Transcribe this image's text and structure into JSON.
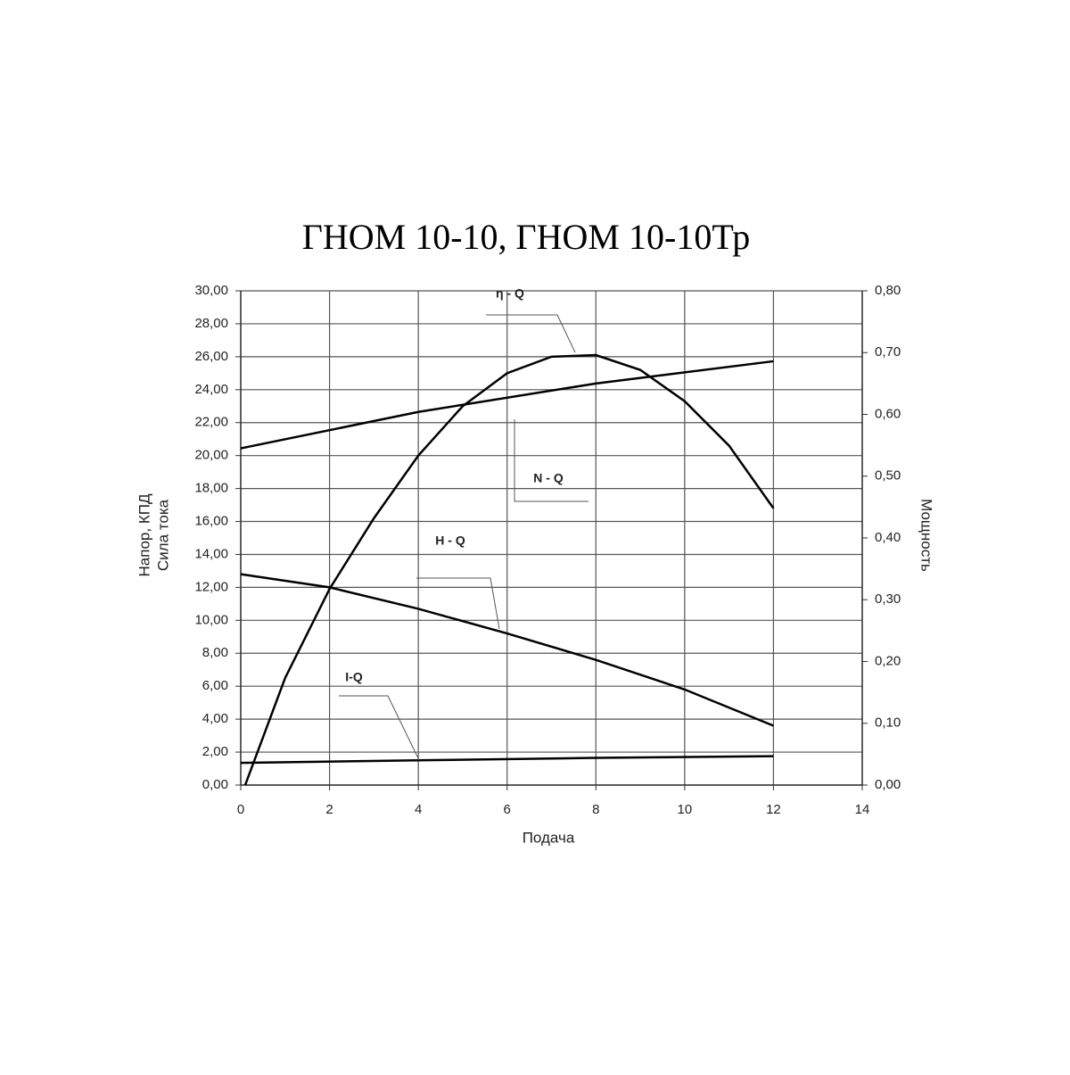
{
  "chart_data": {
    "type": "line",
    "title": "ГНОМ 10-10, ГНОМ 10-10Тр",
    "x_label": "Подача",
    "y_label": [
      "Напор, КПД",
      "Сила тока"
    ],
    "y2_label": "Мощность",
    "xlim": [
      0,
      14
    ],
    "xticks": [
      0,
      2,
      4,
      6,
      8,
      10,
      12,
      14
    ],
    "ylim": [
      0,
      30
    ],
    "yticks": [
      {
        "value": 0,
        "label": "0,00"
      },
      {
        "value": 2,
        "label": "2,00"
      },
      {
        "value": 4,
        "label": "4,00"
      },
      {
        "value": 6,
        "label": "6,00"
      },
      {
        "value": 8,
        "label": "8,00"
      },
      {
        "value": 10,
        "label": "10,00"
      },
      {
        "value": 12,
        "label": "12,00"
      },
      {
        "value": 14,
        "label": "14,00"
      },
      {
        "value": 16,
        "label": "16,00"
      },
      {
        "value": 18,
        "label": "18,00"
      },
      {
        "value": 20,
        "label": "20,00"
      },
      {
        "value": 22,
        "label": "22,00"
      },
      {
        "value": 24,
        "label": "24,00"
      },
      {
        "value": 26,
        "label": "26,00"
      },
      {
        "value": 28,
        "label": "28,00"
      },
      {
        "value": 30,
        "label": "30,00"
      }
    ],
    "y2lim": [
      0,
      0.8
    ],
    "y2ticks": [
      {
        "value": 0,
        "label": "0,00"
      },
      {
        "value": 0.1,
        "label": "0,10"
      },
      {
        "value": 0.2,
        "label": "0,20"
      },
      {
        "value": 0.3,
        "label": "0,30"
      },
      {
        "value": 0.4,
        "label": "0,40"
      },
      {
        "value": 0.5,
        "label": "0,50"
      },
      {
        "value": 0.6,
        "label": "0,60"
      },
      {
        "value": 0.7,
        "label": "0,70"
      },
      {
        "value": 0.8,
        "label": "0,80"
      }
    ],
    "grid": true,
    "series": [
      {
        "name": "η - Q",
        "color": "#000000",
        "x": [
          0.1,
          1,
          2,
          3,
          4,
          5,
          6,
          7,
          8,
          9,
          10,
          11,
          12
        ],
        "values": [
          0,
          6.5,
          11.9,
          16.2,
          20.0,
          23.0,
          25.0,
          26.0,
          26.1,
          25.2,
          23.3,
          20.6,
          16.8
        ]
      },
      {
        "name": "N - Q",
        "color": "#000000",
        "axis": "y2",
        "x": [
          0,
          4,
          8,
          12
        ],
        "values": [
          0.545,
          0.604,
          0.65,
          0.686
        ]
      },
      {
        "name": "H - Q",
        "color": "#000000",
        "x": [
          0,
          2,
          4,
          6,
          8,
          10,
          12
        ],
        "values": [
          12.8,
          12.0,
          10.7,
          9.2,
          7.6,
          5.8,
          3.6
        ]
      },
      {
        "name": "I-Q",
        "color": "#000000",
        "x": [
          0,
          4,
          8,
          12
        ],
        "values": [
          1.35,
          1.5,
          1.65,
          1.75
        ]
      }
    ]
  }
}
